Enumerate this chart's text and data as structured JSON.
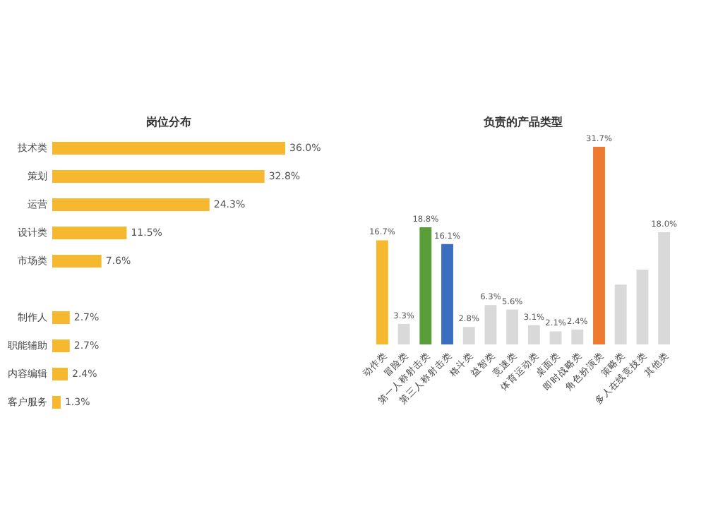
{
  "chart_data": [
    {
      "type": "bar",
      "orientation": "horizontal",
      "title": "岗位分布",
      "categories": [
        "技术类",
        "策划",
        "运营",
        "设计类",
        "市场类",
        null,
        "制作人",
        "职能辅助",
        "内容编辑",
        "客户服务"
      ],
      "values": [
        36.0,
        32.8,
        24.3,
        11.5,
        7.6,
        null,
        2.7,
        2.7,
        2.4,
        1.3
      ],
      "value_labels": [
        "36.0%",
        "32.8%",
        "24.3%",
        "11.5%",
        "7.6%",
        null,
        "2.7%",
        "2.7%",
        "2.4%",
        "1.3%"
      ],
      "color": "#f5b82e"
    },
    {
      "type": "bar",
      "title": "负责的产品类型",
      "categories": [
        "动作类",
        "冒险类",
        "第一人称射击类",
        "第三人称射击类",
        "格斗类",
        "益智类",
        "竞速类",
        "体育运动类",
        "桌面类",
        "即时战略类",
        "角色扮演类",
        "策略类",
        "多人在线竞技类",
        "其他类"
      ],
      "values": [
        16.7,
        3.3,
        18.8,
        16.1,
        2.8,
        6.3,
        5.6,
        3.1,
        2.1,
        2.4,
        31.7,
        9.6,
        12.0,
        18.0
      ],
      "value_labels": [
        "16.7%",
        "3.3%",
        "18.8%",
        "16.1%",
        "2.8%",
        "6.3%",
        "5.6%",
        "3.1%",
        "2.1%",
        "2.4%",
        "31.7%",
        null,
        null,
        "18.0%"
      ],
      "colors": [
        "#f5b82e",
        "#d9d9d9",
        "#5a9e3a",
        "#3a6fc0",
        "#d9d9d9",
        "#d9d9d9",
        "#d9d9d9",
        "#d9d9d9",
        "#d9d9d9",
        "#d9d9d9",
        "#ee7a30",
        "#d9d9d9",
        "#d9d9d9",
        "#d9d9d9"
      ]
    }
  ]
}
